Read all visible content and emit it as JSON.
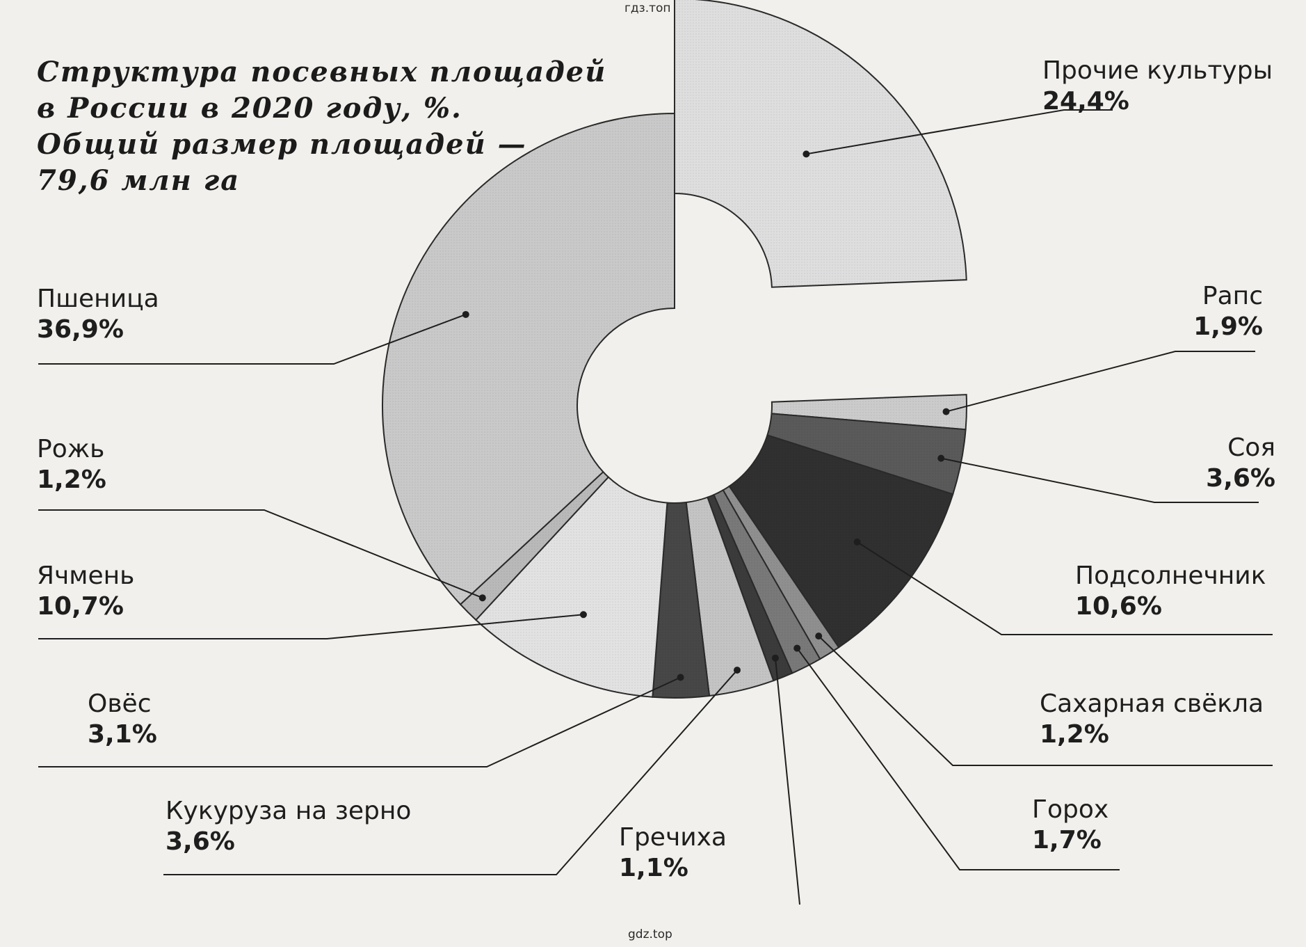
{
  "header": {
    "watermark_top": "гдз.топ",
    "watermark_bottom": "gdz.top"
  },
  "chart_data": {
    "type": "pie",
    "variant": "exploded-donut",
    "title_lines": [
      "Структура посевных площадей",
      "в России в 2020 году, %.",
      "Общий размер площадей —",
      "79,6 млн га"
    ],
    "unit": "%",
    "slices": [
      {
        "name": "Прочие культуры",
        "value": 24.4,
        "label": "24,4%",
        "color": "#dedede",
        "exploded": true
      },
      {
        "name": "Рапс",
        "value": 1.9,
        "label": "1,9%",
        "color": "#cbcbcb"
      },
      {
        "name": "Соя",
        "value": 3.6,
        "label": "3,6%",
        "color": "#5a5a5a"
      },
      {
        "name": "Подсолнечник",
        "value": 10.6,
        "label": "10,6%",
        "color": "#303030"
      },
      {
        "name": "Сахарная свёкла",
        "value": 1.2,
        "label": "1,2%",
        "color": "#8f8f8f"
      },
      {
        "name": "Горох",
        "value": 1.7,
        "label": "1,7%",
        "color": "#797979"
      },
      {
        "name": "Гречиха",
        "value": 1.1,
        "label": "1,1%",
        "color": "#3b3b3b"
      },
      {
        "name": "Кукуруза на зерно",
        "value": 3.6,
        "label": "3,6%",
        "color": "#c4c4c4"
      },
      {
        "name": "Овёс",
        "value": 3.1,
        "label": "3,1%",
        "color": "#474747"
      },
      {
        "name": "Ячмень",
        "value": 10.7,
        "label": "10,7%",
        "color": "#e2e2e2"
      },
      {
        "name": "Рожь",
        "value": 1.2,
        "label": "1,2%",
        "color": "#b9b9b9"
      },
      {
        "name": "Пшеница",
        "value": 36.9,
        "label": "36,9%",
        "color": "#c9c9c9"
      }
    ]
  }
}
